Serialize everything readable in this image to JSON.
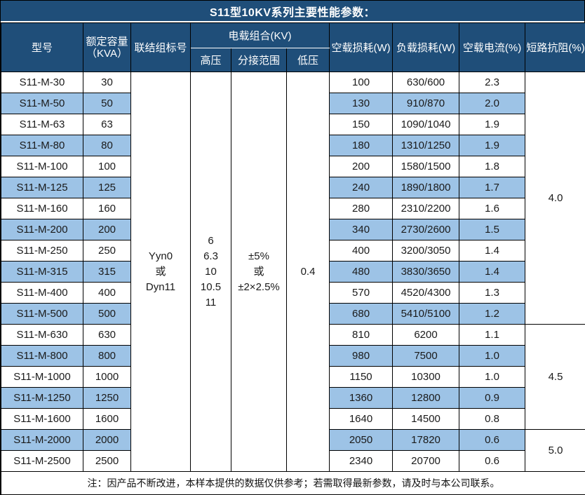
{
  "title": "S11型10KV系列主要性能参数：",
  "colors": {
    "header_bg": "#1F4E79",
    "header_text": "#FFFFFF",
    "band_row_bg": "#9DC3E6",
    "border": "#000000",
    "body_bg": "#FFFFFF"
  },
  "table": {
    "headers": {
      "model": "型号",
      "capacity_line1": "额定容量",
      "capacity_line2": "（KVA）",
      "connection": "联结组标号",
      "load_combo": "电载组合(KV)",
      "hv": "高压",
      "tap_range": "分接范围",
      "lv": "低压",
      "no_load_loss": "空载损耗(W)",
      "load_loss": "负载损耗(W)",
      "no_load_current": "空载电流(%)",
      "impedance": "短路抗阻(%)"
    },
    "merged": {
      "connection_lines": [
        "Yyn0",
        "或",
        "Dyn11"
      ],
      "hv_lines": [
        "6",
        "6.3",
        "10",
        "10.5",
        "11"
      ],
      "tap_lines": [
        "±5%",
        "或",
        "±2×2.5%"
      ],
      "lv": "0.4"
    },
    "rows": [
      {
        "model": "S11-M-30",
        "capacity": "30",
        "no_load_loss": "100",
        "load_loss": "630/600",
        "no_load_current": "2.3"
      },
      {
        "model": "S11-M-50",
        "capacity": "50",
        "no_load_loss": "130",
        "load_loss": "910/870",
        "no_load_current": "2.0"
      },
      {
        "model": "S11-M-63",
        "capacity": "63",
        "no_load_loss": "150",
        "load_loss": "1090/1040",
        "no_load_current": "1.9"
      },
      {
        "model": "S11-M-80",
        "capacity": "80",
        "no_load_loss": "180",
        "load_loss": "1310/1250",
        "no_load_current": "1.9"
      },
      {
        "model": "S11-M-100",
        "capacity": "100",
        "no_load_loss": "200",
        "load_loss": "1580/1500",
        "no_load_current": "1.8"
      },
      {
        "model": "S11-M-125",
        "capacity": "125",
        "no_load_loss": "240",
        "load_loss": "1890/1800",
        "no_load_current": "1.7"
      },
      {
        "model": "S11-M-160",
        "capacity": "160",
        "no_load_loss": "280",
        "load_loss": "2310/2200",
        "no_load_current": "1.6"
      },
      {
        "model": "S11-M-200",
        "capacity": "200",
        "no_load_loss": "340",
        "load_loss": "2730/2600",
        "no_load_current": "1.5"
      },
      {
        "model": "S11-M-250",
        "capacity": "250",
        "no_load_loss": "400",
        "load_loss": "3200/3050",
        "no_load_current": "1.4"
      },
      {
        "model": "S11-M-315",
        "capacity": "315",
        "no_load_loss": "480",
        "load_loss": "3830/3650",
        "no_load_current": "1.4"
      },
      {
        "model": "S11-M-400",
        "capacity": "400",
        "no_load_loss": "570",
        "load_loss": "4520/4300",
        "no_load_current": "1.3"
      },
      {
        "model": "S11-M-500",
        "capacity": "500",
        "no_load_loss": "680",
        "load_loss": "5410/5100",
        "no_load_current": "1.2"
      },
      {
        "model": "S11-M-630",
        "capacity": "630",
        "no_load_loss": "810",
        "load_loss": "6200",
        "no_load_current": "1.1"
      },
      {
        "model": "S11-M-800",
        "capacity": "800",
        "no_load_loss": "980",
        "load_loss": "7500",
        "no_load_current": "1.0"
      },
      {
        "model": "S11-M-1000",
        "capacity": "1000",
        "no_load_loss": "1150",
        "load_loss": "10300",
        "no_load_current": "1.0"
      },
      {
        "model": "S11-M-1250",
        "capacity": "1250",
        "no_load_loss": "1360",
        "load_loss": "12800",
        "no_load_current": "0.9"
      },
      {
        "model": "S11-M-1600",
        "capacity": "1600",
        "no_load_loss": "1640",
        "load_loss": "14500",
        "no_load_current": "0.8"
      },
      {
        "model": "S11-M-2000",
        "capacity": "2000",
        "no_load_loss": "2050",
        "load_loss": "17820",
        "no_load_current": "0.6"
      },
      {
        "model": "S11-M-2500",
        "capacity": "2500",
        "no_load_loss": "2340",
        "load_loss": "20700",
        "no_load_current": "0.6"
      }
    ],
    "impedance_groups": [
      {
        "value": "4.0",
        "row_span": 12
      },
      {
        "value": "4.5",
        "row_span": 5
      },
      {
        "value": "5.0",
        "row_span": 2
      }
    ]
  },
  "footer_note": "注：因产品不断改进，本样本提供的数据仅供参考；若需取得最新参数，请及时与本公司联系。"
}
